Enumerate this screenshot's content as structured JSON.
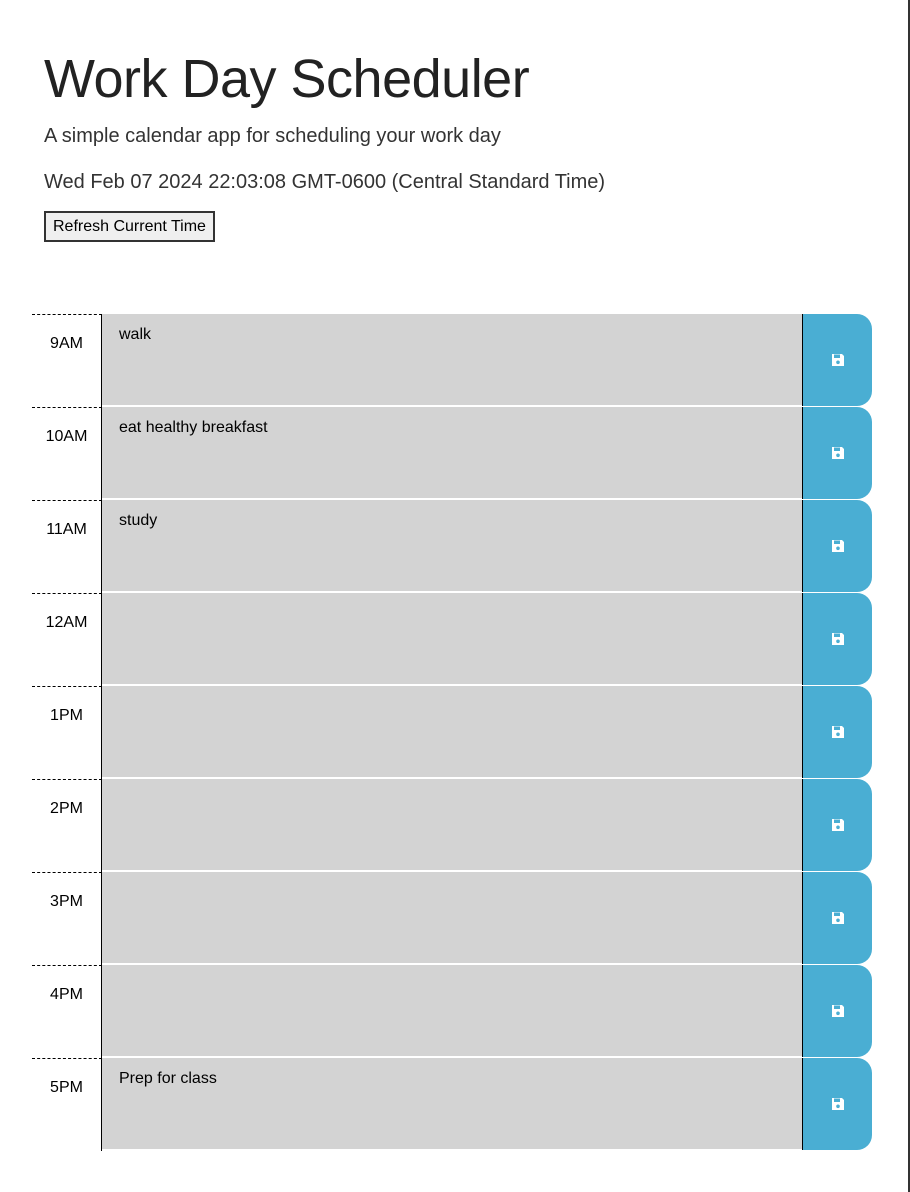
{
  "header": {
    "title": "Work Day Scheduler",
    "subtitle": "A simple calendar app for scheduling your work day",
    "current_date": "Wed Feb 07 2024 22:03:08 GMT-0600 (Central Standard Time)",
    "refresh_label": "Refresh Current Time"
  },
  "colors": {
    "row_background": "#d3d3d3",
    "save_button": "#4aaed3"
  },
  "schedule": {
    "rows": [
      {
        "hour": "9AM",
        "text": "walk",
        "save_icon": "save-icon"
      },
      {
        "hour": "10AM",
        "text": "eat healthy breakfast",
        "save_icon": "save-icon"
      },
      {
        "hour": "11AM",
        "text": "study",
        "save_icon": "save-icon"
      },
      {
        "hour": "12AM",
        "text": "",
        "save_icon": "save-icon"
      },
      {
        "hour": "1PM",
        "text": "",
        "save_icon": "save-icon"
      },
      {
        "hour": "2PM",
        "text": "",
        "save_icon": "save-icon"
      },
      {
        "hour": "3PM",
        "text": "",
        "save_icon": "save-icon"
      },
      {
        "hour": "4PM",
        "text": "",
        "save_icon": "save-icon"
      },
      {
        "hour": "5PM",
        "text": "Prep for class",
        "save_icon": "save-icon"
      }
    ]
  }
}
